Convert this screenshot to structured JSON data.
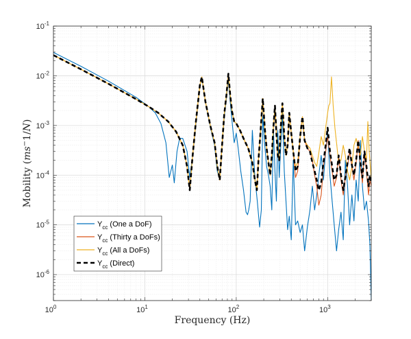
{
  "chart_data": {
    "type": "line",
    "title": "",
    "xlabel": "Frequency (Hz)",
    "ylabel": "Mobility (ms^-1/N)",
    "xscale": "log",
    "yscale": "log",
    "xlim": [
      1,
      3000
    ],
    "ylim": [
      3e-07,
      0.1
    ],
    "grid": true,
    "minor_grid": true,
    "x_ticks": [
      {
        "base": "10",
        "exp": "0",
        "value": 1
      },
      {
        "base": "10",
        "exp": "1",
        "value": 10
      },
      {
        "base": "10",
        "exp": "2",
        "value": 100
      },
      {
        "base": "10",
        "exp": "3",
        "value": 1000
      }
    ],
    "y_ticks": [
      {
        "base": "10",
        "exp": "-1",
        "value": 0.1
      },
      {
        "base": "10",
        "exp": "-2",
        "value": 0.01
      },
      {
        "base": "10",
        "exp": "-3",
        "value": 0.001
      },
      {
        "base": "10",
        "exp": "-4",
        "value": 0.0001
      },
      {
        "base": "10",
        "exp": "-5",
        "value": 1e-05
      },
      {
        "base": "10",
        "exp": "-6",
        "value": 1e-06
      }
    ],
    "legend": {
      "placement": "lower-left",
      "entries": [
        {
          "main": "Y",
          "sub": "cc",
          "rest": " (One a DoF)",
          "series": 0
        },
        {
          "main": "Y",
          "sub": "cc",
          "rest": " (Thirty a DoFs)",
          "series": 1
        },
        {
          "main": "Y",
          "sub": "cc",
          "rest": " (All a DoFs)",
          "series": 2
        },
        {
          "main": "Y",
          "sub": "cc",
          "rest": " (Direct)",
          "series": 3
        }
      ]
    },
    "series": [
      {
        "name": "Ycc (One a DoF)",
        "color": "#0072BD",
        "dashed": false,
        "x": [
          1,
          2,
          4,
          8,
          11,
          13,
          15,
          17,
          18.5,
          20,
          21,
          22.5,
          24,
          26,
          29,
          31,
          33,
          36,
          40,
          42,
          46,
          52,
          58,
          62,
          66,
          70,
          74,
          78,
          82,
          86,
          90,
          95,
          100,
          105,
          112,
          120,
          128,
          133,
          137,
          142,
          150,
          160,
          170,
          180,
          188,
          195,
          205,
          215,
          225,
          235,
          245,
          255,
          265,
          275,
          285,
          295,
          305,
          320,
          335,
          350,
          365,
          380,
          400,
          420,
          445,
          470,
          500,
          530,
          560,
          600,
          640,
          680,
          720,
          760,
          800,
          850,
          900,
          950,
          1000,
          1060,
          1120,
          1180,
          1250,
          1320,
          1400,
          1480,
          1560,
          1650,
          1740,
          1840,
          1940,
          2050,
          2160,
          2280,
          2400,
          2530,
          2660,
          2800,
          2900,
          3000
        ],
        "y": [
          0.0295,
          0.0155,
          0.0078,
          0.0037,
          0.0024,
          0.0018,
          0.0011,
          0.00045,
          9e-05,
          0.00016,
          7e-05,
          0.0003,
          0.00055,
          0.00055,
          0.0003,
          9e-05,
          0.0002,
          0.001,
          0.0065,
          0.009,
          0.003,
          0.00095,
          0.0004,
          0.00012,
          9e-05,
          0.0004,
          0.0015,
          0.0035,
          0.009,
          0.003,
          0.0012,
          0.00045,
          0.0007,
          0.00035,
          0.00012,
          5e-05,
          1.8e-05,
          1.6e-05,
          2e-05,
          3e-05,
          0.0008,
          9e-05,
          3e-05,
          9e-06,
          2e-05,
          0.0015,
          0.0004,
          0.00015,
          0.0001,
          6e-05,
          2e-05,
          0.0009,
          0.00012,
          3e-05,
          0.0008,
          9e-05,
          0.0003,
          0.0018,
          0.00012,
          3e-05,
          8e-06,
          1.5e-05,
          5e-06,
          0.0002,
          1e-05,
          1.2e-05,
          7e-06,
          1e-05,
          3e-06,
          9e-06,
          2e-05,
          6e-05,
          2e-05,
          4e-05,
          0.0001,
          0.00025,
          8e-05,
          0.0003,
          0.0008,
          0.0001,
          3e-05,
          1e-05,
          3e-06,
          8e-06,
          1.8e-05,
          5e-06,
          0.0002,
          6e-05,
          1e-05,
          4e-05,
          1.2e-05,
          8e-05,
          3e-05,
          0.0005,
          6e-05,
          2e-05,
          3e-05,
          1.2e-05,
          4e-06,
          3e-07
        ]
      },
      {
        "name": "Ycc (Thirty a DoFs)",
        "color": "#D95319",
        "dashed": false,
        "x": [
          1,
          2,
          4,
          8,
          11,
          14,
          18,
          22,
          26,
          29,
          31,
          33,
          36,
          40,
          42,
          46,
          52,
          58,
          62,
          66,
          70,
          74,
          78,
          82,
          86,
          90,
          95,
          100,
          110,
          120,
          135,
          150,
          160,
          168,
          175,
          185,
          195,
          205,
          215,
          225,
          235,
          245,
          255,
          265,
          275,
          285,
          295,
          305,
          320,
          335,
          350,
          365,
          380,
          400,
          420,
          445,
          470,
          500,
          530,
          560,
          600,
          640,
          680,
          720,
          760,
          800,
          850,
          900,
          950,
          1000,
          1060,
          1120,
          1180,
          1250,
          1320,
          1400,
          1480,
          1560,
          1650,
          1740,
          1840,
          1940,
          2050,
          2160,
          2280,
          2400,
          2530,
          2660,
          2800,
          2900,
          3000
        ],
        "y": [
          0.026,
          0.0135,
          0.0069,
          0.0034,
          0.0024,
          0.0018,
          0.0012,
          0.00075,
          0.0004,
          0.00015,
          5e-05,
          0.0002,
          0.0011,
          0.0065,
          0.0095,
          0.003,
          0.001,
          0.00045,
          0.00015,
          8e-05,
          0.0004,
          0.0017,
          0.004,
          0.011,
          0.004,
          0.0019,
          0.0012,
          0.0011,
          0.0008,
          0.00055,
          0.00035,
          0.00018,
          8e-05,
          5e-05,
          0.0002,
          0.0008,
          0.0035,
          0.0009,
          0.00035,
          0.00018,
          0.0001,
          0.00025,
          0.0009,
          0.0025,
          0.0007,
          0.00025,
          0.0002,
          0.0008,
          0.0028,
          0.0006,
          0.00025,
          0.0004,
          0.0018,
          0.0007,
          0.0003,
          9e-05,
          0.00012,
          0.0006,
          0.0015,
          0.0005,
          0.00035,
          0.0003,
          0.0002,
          0.0001,
          6e-05,
          2.5e-05,
          4e-05,
          0.00015,
          0.0003,
          0.0006,
          0.00025,
          0.00012,
          6e-05,
          9e-05,
          0.00025,
          8e-05,
          4e-05,
          9e-05,
          0.00015,
          0.0003,
          0.00015,
          8e-05,
          0.00018,
          0.0005,
          0.00015,
          7e-05,
          0.0003,
          0.00012,
          4e-05,
          8e-05,
          6e-05
        ]
      },
      {
        "name": "Ycc (All a DoFs)",
        "color": "#EDB120",
        "dashed": false,
        "x": [
          1,
          2,
          4,
          8,
          11,
          14,
          18,
          22,
          26,
          29,
          31,
          33,
          36,
          40,
          42,
          46,
          52,
          58,
          62,
          66,
          70,
          74,
          78,
          82,
          86,
          90,
          95,
          100,
          110,
          120,
          135,
          150,
          160,
          168,
          175,
          185,
          195,
          205,
          215,
          225,
          235,
          245,
          255,
          265,
          275,
          285,
          295,
          305,
          320,
          335,
          350,
          365,
          380,
          400,
          420,
          445,
          470,
          500,
          530,
          560,
          600,
          640,
          680,
          720,
          760,
          800,
          850,
          900,
          950,
          1000,
          1030,
          1060,
          1100,
          1150,
          1200,
          1260,
          1320,
          1400,
          1480,
          1560,
          1650,
          1740,
          1840,
          1940,
          2050,
          2160,
          2280,
          2400,
          2530,
          2660,
          2750,
          2850,
          3000
        ],
        "y": [
          0.026,
          0.0135,
          0.0069,
          0.0034,
          0.0024,
          0.0018,
          0.0012,
          0.00075,
          0.0004,
          0.00015,
          5e-05,
          0.0002,
          0.0011,
          0.0065,
          0.0095,
          0.003,
          0.001,
          0.00045,
          0.00015,
          8e-05,
          0.0004,
          0.0017,
          0.004,
          0.011,
          0.004,
          0.0019,
          0.0012,
          0.0011,
          0.0008,
          0.00055,
          0.00035,
          0.00018,
          8e-05,
          5e-05,
          0.0002,
          0.0008,
          0.0035,
          0.0009,
          0.00035,
          0.00018,
          0.0001,
          0.00025,
          0.0009,
          0.0025,
          0.0007,
          0.00025,
          0.0002,
          0.0008,
          0.0028,
          0.0006,
          0.00025,
          0.0004,
          0.0018,
          0.0007,
          0.0003,
          0.00015,
          0.00018,
          0.0006,
          0.0015,
          0.0005,
          0.0004,
          0.00035,
          0.00025,
          0.00018,
          0.00015,
          0.00028,
          0.0006,
          0.0004,
          0.0009,
          0.0018,
          0.0025,
          0.0028,
          0.0095,
          0.0025,
          0.0009,
          0.0004,
          0.00018,
          0.0002,
          0.0004,
          0.00025,
          0.00012,
          8e-05,
          0.00015,
          0.0004,
          0.00055,
          0.00035,
          0.00025,
          0.0006,
          0.0003,
          0.0002,
          0.0012,
          0.0003,
          8e-05
        ]
      },
      {
        "name": "Ycc (Direct)",
        "color": "#000000",
        "dashed": true,
        "x": [
          1,
          2,
          4,
          8,
          11,
          14,
          18,
          22,
          26,
          29,
          31,
          33,
          36,
          40,
          42,
          46,
          52,
          58,
          62,
          66,
          70,
          74,
          78,
          82,
          86,
          90,
          95,
          100,
          110,
          120,
          135,
          150,
          160,
          168,
          175,
          185,
          195,
          205,
          215,
          225,
          235,
          245,
          255,
          265,
          275,
          285,
          295,
          305,
          320,
          335,
          350,
          365,
          380,
          400,
          420,
          445,
          470,
          500,
          530,
          560,
          600,
          640,
          680,
          720,
          760,
          800,
          850,
          900,
          950,
          1000,
          1060,
          1120,
          1180,
          1250,
          1320,
          1400,
          1480,
          1560,
          1650,
          1740,
          1840,
          1940,
          2050,
          2160,
          2280,
          2400,
          2530,
          2660,
          2800,
          2900,
          3000
        ],
        "y": [
          0.026,
          0.0135,
          0.0069,
          0.0034,
          0.0024,
          0.0018,
          0.0012,
          0.00075,
          0.0004,
          0.00015,
          5e-05,
          0.0002,
          0.0011,
          0.0065,
          0.0095,
          0.003,
          0.001,
          0.00045,
          0.00015,
          8e-05,
          0.0004,
          0.0017,
          0.004,
          0.011,
          0.004,
          0.0019,
          0.0012,
          0.0011,
          0.0008,
          0.00055,
          0.00035,
          0.00018,
          8e-05,
          5e-05,
          0.0002,
          0.0008,
          0.0035,
          0.0009,
          0.00035,
          0.00018,
          0.0001,
          0.00025,
          0.0009,
          0.0025,
          0.0007,
          0.00025,
          0.0002,
          0.0008,
          0.0028,
          0.0006,
          0.00025,
          0.0004,
          0.0018,
          0.0007,
          0.0003,
          0.00012,
          0.00015,
          0.0006,
          0.0015,
          0.0005,
          0.00035,
          0.0003,
          0.00018,
          0.00012,
          8e-05,
          5e-05,
          7e-05,
          0.00018,
          0.0004,
          0.0009,
          0.0003,
          0.00015,
          8e-05,
          0.0001,
          0.00025,
          0.0001,
          5e-05,
          9e-05,
          0.00018,
          0.00035,
          0.00016,
          0.0001,
          0.0002,
          0.0005,
          0.00018,
          9e-05,
          0.0003,
          0.00015,
          6e-05,
          0.0001,
          7e-05
        ]
      }
    ]
  }
}
